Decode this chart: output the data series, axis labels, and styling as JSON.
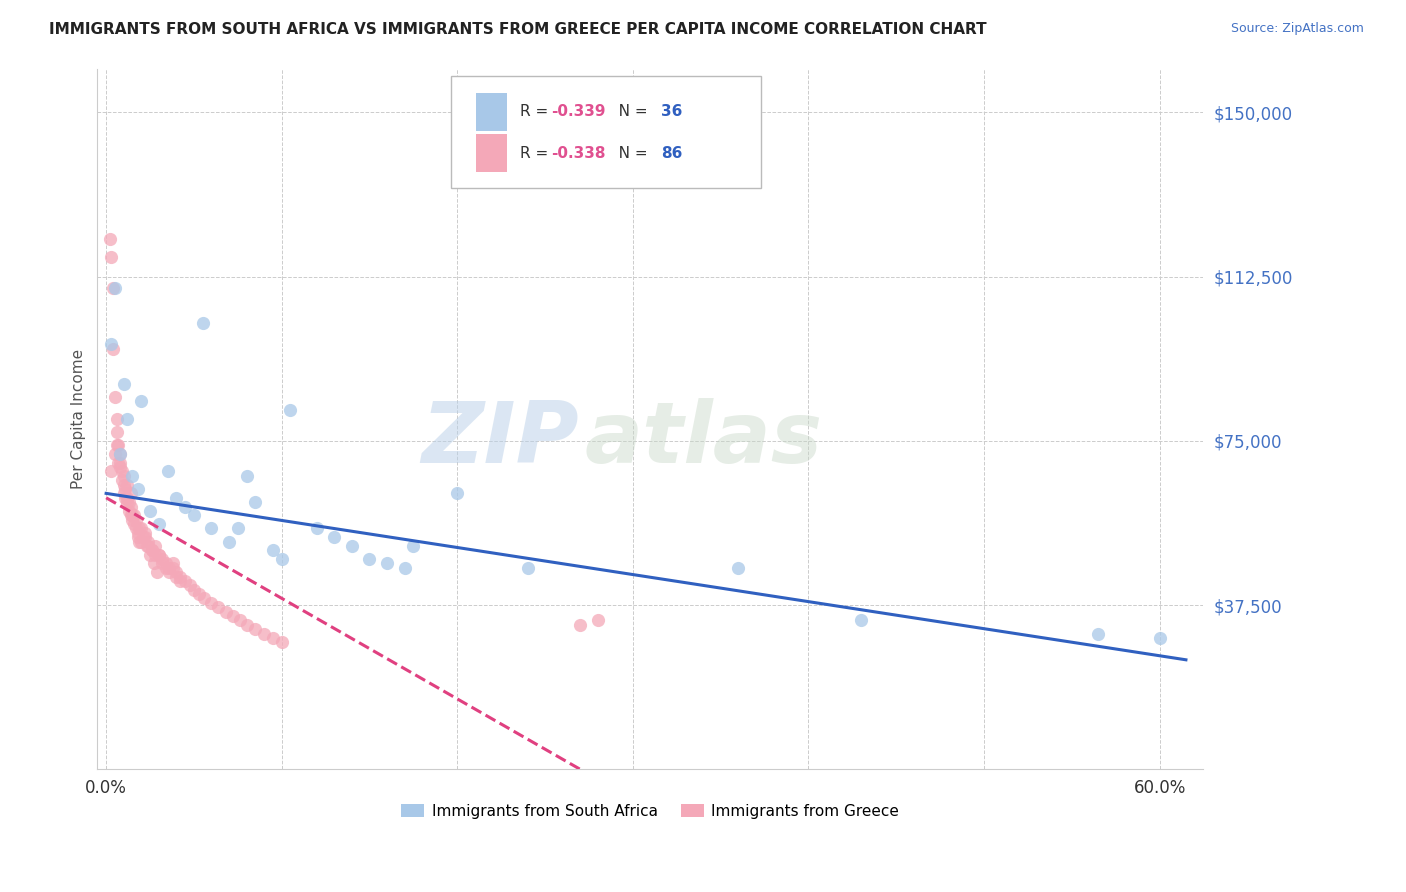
{
  "title": "IMMIGRANTS FROM SOUTH AFRICA VS IMMIGRANTS FROM GREECE PER CAPITA INCOME CORRELATION CHART",
  "source": "Source: ZipAtlas.com",
  "ylabel": "Per Capita Income",
  "ytick_labels": [
    "$37,500",
    "$75,000",
    "$112,500",
    "$150,000"
  ],
  "ytick_vals": [
    37500,
    75000,
    112500,
    150000
  ],
  "ylim": [
    0,
    160000
  ],
  "xlim": [
    -0.005,
    0.625
  ],
  "xtick_vals": [
    0.0,
    0.1,
    0.2,
    0.3,
    0.4,
    0.5,
    0.6
  ],
  "xtick_labels": [
    "0.0%",
    "",
    "",
    "",
    "",
    "",
    "60.0%"
  ],
  "blue_R": "-0.339",
  "blue_N": "36",
  "pink_R": "-0.338",
  "pink_N": "86",
  "blue_color": "#a8c8e8",
  "pink_color": "#f4a8b8",
  "blue_line_color": "#3060c0",
  "pink_line_color": "#e04080",
  "watermark_zip": "ZIP",
  "watermark_atlas": "atlas",
  "legend1_label": "Immigrants from South Africa",
  "legend2_label": "Immigrants from Greece",
  "blue_scatter_x": [
    0.003,
    0.005,
    0.008,
    0.01,
    0.012,
    0.015,
    0.018,
    0.02,
    0.025,
    0.03,
    0.035,
    0.04,
    0.045,
    0.05,
    0.055,
    0.06,
    0.07,
    0.075,
    0.08,
    0.085,
    0.095,
    0.1,
    0.105,
    0.12,
    0.13,
    0.14,
    0.15,
    0.16,
    0.17,
    0.175,
    0.2,
    0.24,
    0.36,
    0.43,
    0.565,
    0.6
  ],
  "blue_scatter_y": [
    97000,
    110000,
    72000,
    88000,
    80000,
    67000,
    64000,
    84000,
    59000,
    56000,
    68000,
    62000,
    60000,
    58000,
    102000,
    55000,
    52000,
    55000,
    67000,
    61000,
    50000,
    48000,
    82000,
    55000,
    53000,
    51000,
    48000,
    47000,
    46000,
    51000,
    63000,
    46000,
    46000,
    34000,
    31000,
    30000
  ],
  "pink_scatter_x": [
    0.002,
    0.003,
    0.004,
    0.005,
    0.006,
    0.007,
    0.008,
    0.009,
    0.01,
    0.011,
    0.012,
    0.013,
    0.014,
    0.015,
    0.016,
    0.017,
    0.018,
    0.019,
    0.02,
    0.022,
    0.024,
    0.026,
    0.028,
    0.03,
    0.032,
    0.034,
    0.036,
    0.038,
    0.04,
    0.042,
    0.004,
    0.006,
    0.008,
    0.01,
    0.012,
    0.014,
    0.016,
    0.018,
    0.02,
    0.022,
    0.024,
    0.026,
    0.028,
    0.03,
    0.032,
    0.034,
    0.036,
    0.038,
    0.04,
    0.042,
    0.045,
    0.048,
    0.05,
    0.053,
    0.056,
    0.06,
    0.064,
    0.068,
    0.072,
    0.076,
    0.08,
    0.085,
    0.09,
    0.095,
    0.1,
    0.005,
    0.007,
    0.009,
    0.011,
    0.013,
    0.015,
    0.017,
    0.019,
    0.021,
    0.023,
    0.025,
    0.027,
    0.029,
    0.003,
    0.006,
    0.008,
    0.01,
    0.012,
    0.014,
    0.28,
    0.27
  ],
  "pink_scatter_y": [
    121000,
    117000,
    96000,
    85000,
    80000,
    74000,
    70000,
    68000,
    65000,
    62000,
    61000,
    59000,
    58000,
    57000,
    56000,
    55000,
    53000,
    52000,
    55000,
    54000,
    52000,
    50000,
    51000,
    49000,
    48000,
    47000,
    46000,
    47000,
    45000,
    44000,
    110000,
    77000,
    69000,
    63000,
    62000,
    60000,
    58000,
    54000,
    52000,
    53000,
    51000,
    50000,
    49000,
    49000,
    47000,
    46000,
    45000,
    46000,
    44000,
    43000,
    43000,
    42000,
    41000,
    40000,
    39000,
    38000,
    37000,
    36000,
    35000,
    34000,
    33000,
    32000,
    31000,
    30000,
    29000,
    72000,
    70000,
    66000,
    64000,
    61000,
    58000,
    57000,
    55000,
    53000,
    51000,
    49000,
    47000,
    45000,
    68000,
    74000,
    72000,
    67000,
    65000,
    63000,
    34000,
    33000
  ],
  "blue_trend_x0": 0.0,
  "blue_trend_x1": 0.615,
  "blue_trend_y0": 63000,
  "blue_trend_y1": 25000,
  "pink_trend_x0": 0.0,
  "pink_trend_x1": 0.27,
  "pink_trend_y0": 62000,
  "pink_trend_y1": 0,
  "grid_color": "#cccccc",
  "title_fontsize": 11,
  "source_fontsize": 9
}
